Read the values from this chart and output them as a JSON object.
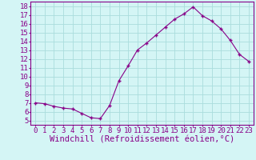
{
  "x": [
    0,
    1,
    2,
    3,
    4,
    5,
    6,
    7,
    8,
    9,
    10,
    11,
    12,
    13,
    14,
    15,
    16,
    17,
    18,
    19,
    20,
    21,
    22,
    23
  ],
  "y": [
    7.0,
    6.9,
    6.6,
    6.4,
    6.3,
    5.8,
    5.3,
    5.2,
    6.7,
    9.5,
    11.2,
    13.0,
    13.8,
    14.7,
    15.6,
    16.5,
    17.1,
    17.9,
    16.9,
    16.3,
    15.4,
    14.1,
    12.5,
    11.7
  ],
  "line_color": "#880088",
  "marker": "+",
  "bg_color": "#d4f5f5",
  "grid_color": "#aadddd",
  "xlabel": "Windchill (Refroidissement éolien,°C)",
  "xlim": [
    -0.5,
    23.5
  ],
  "ylim": [
    4.5,
    18.5
  ],
  "yticks": [
    5,
    6,
    7,
    8,
    9,
    10,
    11,
    12,
    13,
    14,
    15,
    16,
    17,
    18
  ],
  "xticks": [
    0,
    1,
    2,
    3,
    4,
    5,
    6,
    7,
    8,
    9,
    10,
    11,
    12,
    13,
    14,
    15,
    16,
    17,
    18,
    19,
    20,
    21,
    22,
    23
  ],
  "tick_color": "#880088",
  "label_color": "#880088",
  "axis_color": "#880088",
  "font_size": 6.5,
  "xlabel_fontsize": 7.5
}
